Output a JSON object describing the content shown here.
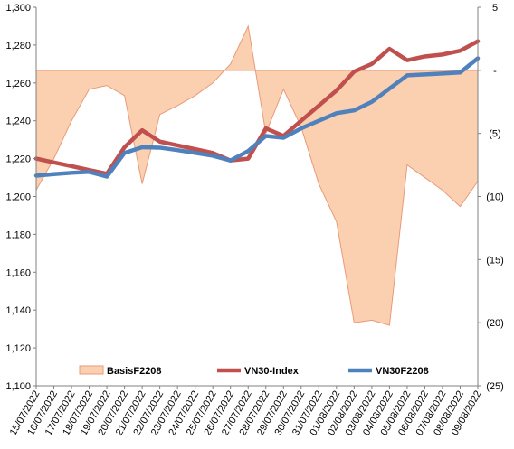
{
  "chart_data": {
    "type": "line",
    "title": "",
    "xlabel": "",
    "ylabel": "",
    "x": [
      "15/07/2022",
      "16/07/2022",
      "17/07/2022",
      "18/07/2022",
      "19/07/2022",
      "20/07/2022",
      "21/07/2022",
      "22/07/2022",
      "23/07/2022",
      "24/07/2022",
      "25/07/2022",
      "26/07/2022",
      "27/07/2022",
      "28/07/2022",
      "29/07/2022",
      "30/07/2022",
      "31/07/2022",
      "01/08/2022",
      "02/08/2022",
      "03/08/2022",
      "04/08/2022",
      "05/08/2022",
      "06/08/2022",
      "07/08/2022",
      "08/08/2022",
      "09/08/2022"
    ],
    "y_left": {
      "min": 1100,
      "max": 1300,
      "step": 20,
      "tick_labels": [
        "1,100",
        "1,120",
        "1,140",
        "1,160",
        "1,180",
        "1,200",
        "1,220",
        "1,240",
        "1,260",
        "1,280",
        "1,300"
      ]
    },
    "y_right": {
      "min": -25,
      "max": 5,
      "step": 5,
      "inverted": false,
      "tick_labels": [
        "(25)",
        "(20)",
        "(15)",
        "(10)",
        "(5)",
        "-",
        "5"
      ]
    },
    "legend_position": "bottom",
    "series": [
      {
        "name": "BasisF2208",
        "kind": "area",
        "axis": "right",
        "color": "#fbd0b0",
        "edge": "#e89a7a",
        "values": [
          -9.5,
          -7,
          -4,
          -1.5,
          -1.2,
          -2,
          -9,
          -3.5,
          -2.8,
          -2,
          -1,
          0.5,
          3.5,
          -5,
          -1.5,
          -4.5,
          -9,
          -12,
          -20,
          -19.8,
          -20.2,
          -7.5,
          -8.5,
          -9.5,
          -10.8,
          -8.8
        ]
      },
      {
        "name": "VN30-Index",
        "kind": "line",
        "axis": "left",
        "color": "#c0504d",
        "values": [
          1220,
          1218,
          1216,
          1214,
          1212,
          1226,
          1235,
          1229,
          1227,
          1225,
          1223,
          1219,
          1220,
          1236,
          1232,
          1240,
          1248,
          1256,
          1266,
          1270,
          1278,
          1272,
          1274,
          1275,
          1277,
          1282
        ]
      },
      {
        "name": "VN30F2208",
        "kind": "line",
        "axis": "left",
        "color": "#4f81bd",
        "values": [
          1211,
          1211.8,
          1212.5,
          1213,
          1210.5,
          1223,
          1226,
          1225.8,
          1224.5,
          1223,
          1221.5,
          1219,
          1224,
          1232,
          1231,
          1236,
          1240,
          1244,
          1245.5,
          1250,
          1257,
          1264,
          1264.5,
          1265,
          1265.5,
          1273
        ]
      }
    ]
  }
}
